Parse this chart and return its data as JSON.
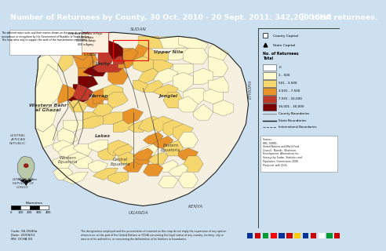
{
  "title": "Number of Returnees by County, 30 Oct. 2010 - 20 Sept. 2011: 342,200 total returnees.",
  "title_bg": "#1a5276",
  "title_color": "#ffffff",
  "title_fontsize": 6.8,
  "map_outer_bg": "#cce0f0",
  "map_inner_bg": "#f5f5e8",
  "legend_bg": "#f8f8f8",
  "legend_title1": "County Capital",
  "legend_title2": "State Capital",
  "legend_header": "No. of Returnees\nTotal",
  "legend_items": [
    {
      "label": "0",
      "color": "#ffffff"
    },
    {
      "label": "1 - 500",
      "color": "#fffacd"
    },
    {
      "label": "501 - 3,500",
      "color": "#f5d76e"
    },
    {
      "label": "3,501 - 7,500",
      "color": "#e8922a"
    },
    {
      "label": "7,501 - 16,000",
      "color": "#c0392b"
    },
    {
      "label": "16,001 - 30,000",
      "color": "#7b0000"
    }
  ],
  "sudan_label": "SUDAN",
  "ethiopia_label": "ETHIOPIA",
  "kenya_label": "KENYA",
  "uganda_label": "UGANDA",
  "car_label": "CENTRAL\nAFRICAN\nREPUBLIC",
  "drc_label": "DEMOCRATIC\nREPUBLIC OF\nCONGO",
  "coord_text": "Code: SS-DS00a\nDate: 20/09/11\nMV: OCHA SS",
  "footer_text": "The designations employed and the presentation of material on this map do not imply the expression of any opinion whatsoever on the part of the United Nations or OCHA concerning the legal status of any country, territory, city or area or of its authorities, or concerning the delimitation of its frontiers or boundaries.",
  "disclaimer_text": "The administrative units and their names shown on this map do not imply acceptance or recognition by the Government of Republic of South Sudan. This map aims only to support the work of the humanitarian community.",
  "note_text": "Note: Stateless displaced/shelter related returns figures are not included in the total returnees count. Numbers are estimates based on preliminary tracking data and are for general guidance only.",
  "colors": {
    "white": "#ffffff",
    "yl1": "#fffacd",
    "yl2": "#f5d76e",
    "org": "#e8922a",
    "red": "#c0392b",
    "dkred": "#7b0000",
    "country_bg": "#f0ede0",
    "water": "#cce0f0"
  }
}
